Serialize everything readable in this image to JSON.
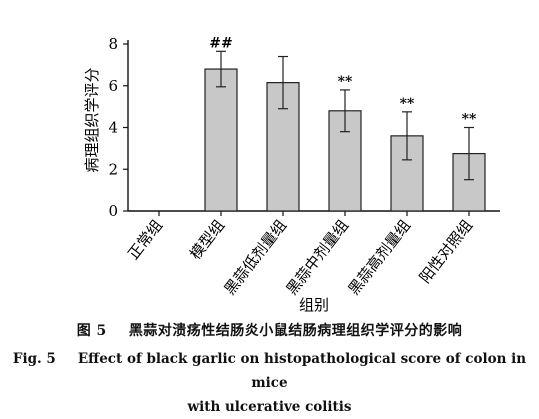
{
  "chart_data": {
    "type": "bar",
    "categories": [
      "正常组",
      "模型组",
      "黑蒜低剂量组",
      "黑蒜中剂量组",
      "黑蒜高剂量组",
      "阳性对照组"
    ],
    "values": [
      0,
      6.8,
      6.15,
      4.8,
      3.6,
      2.75
    ],
    "errors": [
      0,
      0.85,
      1.25,
      1.0,
      1.15,
      1.25
    ],
    "annotations": [
      "",
      "##",
      "",
      "**",
      "**",
      "**"
    ],
    "title": "",
    "xlabel": "组别",
    "ylabel": "病理组织学评分",
    "ylim": [
      0,
      8
    ],
    "yticks": [
      0,
      2,
      4,
      6,
      8
    ],
    "grid": false,
    "colors": {
      "bar_fill": "#c8c8c8",
      "bar_stroke": "#222222",
      "axis": "#111111"
    }
  },
  "caption": {
    "cn_num": "图 5",
    "cn_text": "黑蒜对溃疡性结肠炎小鼠结肠病理组织学评分的影响",
    "en_num": "Fig. 5",
    "en_text_line1": "Effect of black garlic on histopathological score of colon in mice",
    "en_text_line2": "with ulcerative colitis"
  }
}
